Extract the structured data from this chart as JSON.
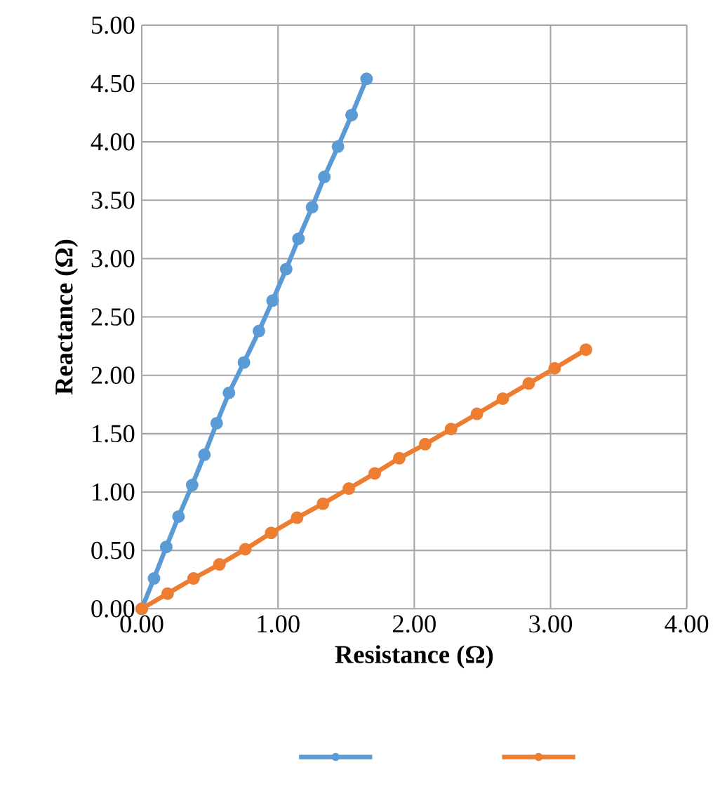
{
  "chart_data": {
    "type": "line",
    "xlabel": "Resistance (Ω)",
    "ylabel": "Reactance (Ω)",
    "xlim": [
      0,
      4
    ],
    "ylim": [
      0,
      5
    ],
    "xticks": [
      {
        "value": 0,
        "label": "0.00"
      },
      {
        "value": 1,
        "label": "1.00"
      },
      {
        "value": 2,
        "label": "2.00"
      },
      {
        "value": 3,
        "label": "3.00"
      },
      {
        "value": 4,
        "label": "4.00"
      }
    ],
    "yticks": [
      {
        "value": 0,
        "label": "0.00"
      },
      {
        "value": 0.5,
        "label": "0.50"
      },
      {
        "value": 1,
        "label": "1.00"
      },
      {
        "value": 1.5,
        "label": "1.50"
      },
      {
        "value": 2,
        "label": "2.00"
      },
      {
        "value": 2.5,
        "label": "2.50"
      },
      {
        "value": 3,
        "label": "3.00"
      },
      {
        "value": 3.5,
        "label": "3.50"
      },
      {
        "value": 4,
        "label": "4.00"
      },
      {
        "value": 4.5,
        "label": "4.50"
      },
      {
        "value": 5,
        "label": "5.00"
      }
    ],
    "grid": true,
    "marker": "circle",
    "line_style": "solid",
    "series": [
      {
        "color": "#5b9bd5",
        "x": [
          0,
          0.09,
          0.18,
          0.27,
          0.37,
          0.46,
          0.55,
          0.64,
          0.75,
          0.86,
          0.96,
          1.06,
          1.15,
          1.25,
          1.34,
          1.44,
          1.54,
          1.65
        ],
        "values": [
          0,
          0.26,
          0.53,
          0.79,
          1.06,
          1.32,
          1.59,
          1.85,
          2.11,
          2.38,
          2.64,
          2.91,
          3.17,
          3.44,
          3.7,
          3.96,
          4.23,
          4.54
        ]
      },
      {
        "color": "#ed7d31",
        "x": [
          0,
          0.19,
          0.38,
          0.57,
          0.76,
          0.95,
          1.14,
          1.33,
          1.52,
          1.71,
          1.89,
          2.08,
          2.27,
          2.46,
          2.65,
          2.84,
          3.03,
          3.26
        ],
        "values": [
          0,
          0.13,
          0.26,
          0.38,
          0.51,
          0.65,
          0.78,
          0.9,
          1.03,
          1.16,
          1.29,
          1.41,
          1.54,
          1.67,
          1.8,
          1.93,
          2.06,
          2.22
        ]
      }
    ]
  }
}
